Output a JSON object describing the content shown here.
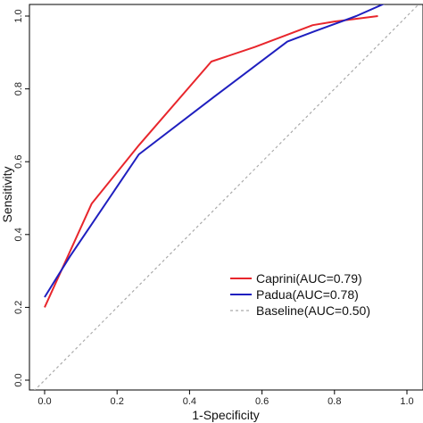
{
  "chart_data": {
    "type": "line",
    "title": "",
    "xlabel": "1-Specificity",
    "ylabel": "Sensitivity",
    "xlim": [
      0.0,
      1.0
    ],
    "ylim": [
      0.0,
      1.0
    ],
    "x_ticks": [
      0.0,
      0.2,
      0.4,
      0.6,
      0.8,
      1.0
    ],
    "y_ticks": [
      0.0,
      0.2,
      0.4,
      0.6,
      0.8,
      1.0
    ],
    "x_tick_labels": [
      "0.0",
      "0.2",
      "0.4",
      "0.6",
      "0.8",
      "1.0"
    ],
    "y_tick_labels": [
      "0.0",
      "0.2",
      "0.4",
      "0.6",
      "0.8",
      "1.0"
    ],
    "grid": false,
    "legend_position": "bottom-right",
    "series": [
      {
        "name": "Caprini(AUC=0.79)",
        "color": "#e8262c",
        "dash": "solid",
        "points": [
          [
            0.0,
            0.2
          ],
          [
            0.13,
            0.485
          ],
          [
            0.26,
            0.645
          ],
          [
            0.46,
            0.875
          ],
          [
            0.58,
            0.915
          ],
          [
            0.74,
            0.975
          ],
          [
            0.8,
            0.985
          ],
          [
            0.92,
            1.0
          ]
        ]
      },
      {
        "name": "Padua(AUC=0.78)",
        "color": "#1f1fbf",
        "dash": "solid",
        "points": [
          [
            0.0,
            0.228
          ],
          [
            0.07,
            0.34
          ],
          [
            0.26,
            0.62
          ],
          [
            0.47,
            0.78
          ],
          [
            0.67,
            0.93
          ],
          [
            0.75,
            0.96
          ],
          [
            0.86,
            1.0
          ],
          [
            0.94,
            1.035
          ]
        ]
      },
      {
        "name": "Baseline(AUC=0.50)",
        "color": "#aaaaaa",
        "dash": "dashed",
        "points": [
          [
            -0.04,
            -0.04
          ],
          [
            1.03,
            1.03
          ]
        ]
      }
    ]
  }
}
